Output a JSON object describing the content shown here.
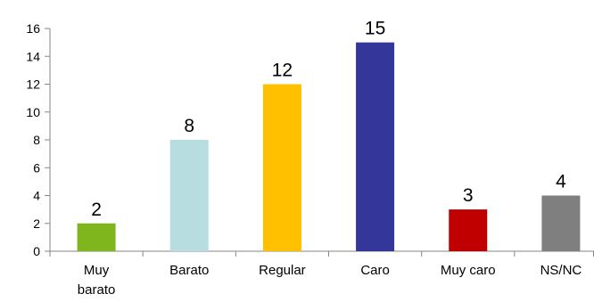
{
  "chart_data": {
    "type": "bar",
    "categories": [
      [
        "Muy",
        "barato"
      ],
      [
        "Barato"
      ],
      [
        "Regular"
      ],
      [
        "Caro"
      ],
      [
        "Muy caro"
      ],
      [
        "NS/NC"
      ]
    ],
    "values": [
      2,
      8,
      12,
      15,
      3,
      4
    ],
    "bar_colors": [
      "#7fb61d",
      "#b8dde1",
      "#ffc000",
      "#35369a",
      "#c00000",
      "#7f7f7f"
    ],
    "title": "",
    "xlabel": "",
    "ylabel": "",
    "ylim": [
      0,
      16
    ],
    "yticks": [
      0,
      2,
      4,
      6,
      8,
      10,
      12,
      14,
      16
    ],
    "grid": false,
    "legend": "none"
  }
}
